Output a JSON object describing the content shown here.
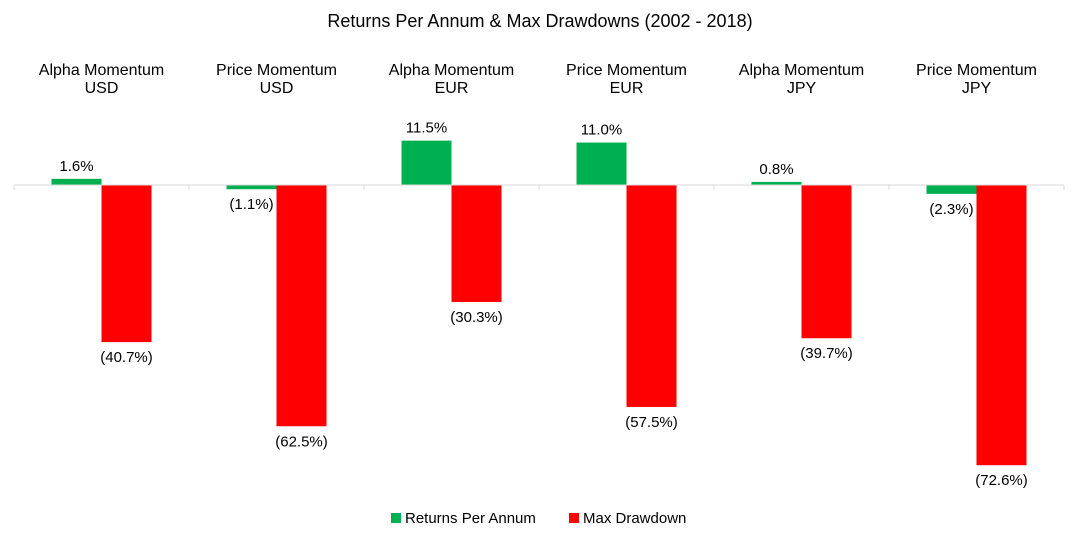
{
  "chart_data": {
    "type": "bar",
    "title": "Returns Per Annum & Max Drawdowns (2002 - 2018)",
    "categories": [
      [
        "Alpha Momentum",
        "USD"
      ],
      [
        "Price Momentum",
        "USD"
      ],
      [
        "Alpha Momentum",
        "EUR"
      ],
      [
        "Price Momentum",
        "EUR"
      ],
      [
        "Alpha Momentum",
        "JPY"
      ],
      [
        "Price Momentum",
        "JPY"
      ]
    ],
    "series": [
      {
        "name": "Returns Per Annum",
        "color": "#00B050",
        "values": [
          1.6,
          -1.1,
          11.5,
          11.0,
          0.8,
          -2.3
        ],
        "labels": [
          "1.6%",
          "(1.1%)",
          "11.5%",
          "11.0%",
          "0.8%",
          "(2.3%)"
        ]
      },
      {
        "name": "Max Drawdown",
        "color": "#FF0000",
        "values": [
          -40.7,
          -62.5,
          -30.3,
          -57.5,
          -39.7,
          -72.6
        ],
        "labels": [
          "(40.7%)",
          "(62.5%)",
          "(30.3%)",
          "(57.5%)",
          "(39.7%)",
          "(72.6%)"
        ]
      }
    ],
    "ylim": [
      -75,
      12
    ],
    "grid": false,
    "legend": "bottom",
    "xlabel": "",
    "ylabel": ""
  }
}
